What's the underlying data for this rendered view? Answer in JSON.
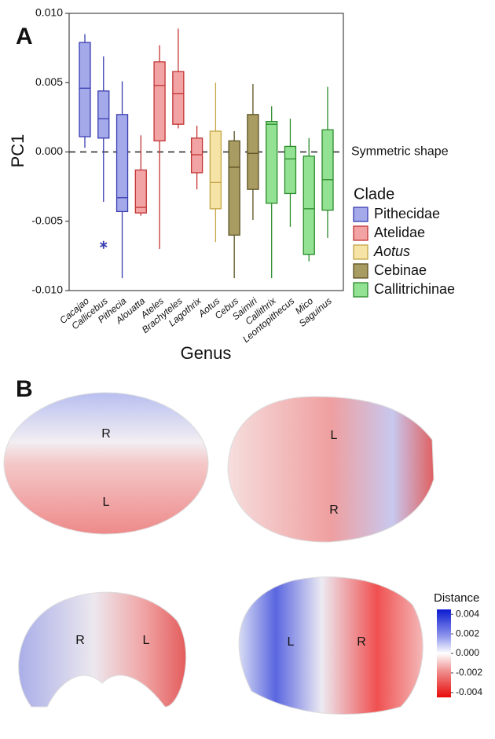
{
  "chart_data": {
    "type": "box",
    "panel": "A",
    "ylabel": "PC1",
    "xlabel": "Genus",
    "ylim": [
      -0.01,
      0.01
    ],
    "yticks": [
      {
        "value": -0.01,
        "label": "-0.010"
      },
      {
        "value": -0.005,
        "label": "-0.005"
      },
      {
        "value": 0,
        "label": "0.000"
      },
      {
        "value": 0.005,
        "label": "0.005"
      },
      {
        "value": 0.01,
        "label": "0.010"
      }
    ],
    "reference_line": {
      "value": 0,
      "label": "Symmetric shape"
    },
    "legend_title": "Clade",
    "legend": "right",
    "series": [
      {
        "name": "Pithecidae",
        "color": "#a4a9ea",
        "edge": "#3a3eb0",
        "categories": [
          "Cacajao",
          "Callicebus",
          "Pithecia"
        ],
        "boxes": [
          {
            "min": 0.0003,
            "q1": 0.0011,
            "median": 0.0046,
            "q3": 0.0079,
            "max": 0.0085
          },
          {
            "min": -0.0036,
            "q1": 0.001,
            "median": 0.0024,
            "q3": 0.0044,
            "max": 0.0069,
            "outliers": [
              -0.0067
            ]
          },
          {
            "min": -0.0091,
            "q1": -0.0043,
            "median": -0.0033,
            "q3": 0.0027,
            "max": 0.0051
          }
        ]
      },
      {
        "name": "Atelidae",
        "color": "#f2a3a3",
        "edge": "#c23434",
        "categories": [
          "Alouatta",
          "Ateles",
          "Brachyteles",
          "Lagothrix"
        ],
        "boxes": [
          {
            "min": -0.0046,
            "q1": -0.0044,
            "median": -0.004,
            "q3": -0.0013,
            "max": 0.0012
          },
          {
            "min": -0.007,
            "q1": 0.0008,
            "median": 0.0048,
            "q3": 0.0065,
            "max": 0.0077
          },
          {
            "min": 0.0017,
            "q1": 0.002,
            "median": 0.0042,
            "q3": 0.0058,
            "max": 0.0089
          },
          {
            "min": -0.0027,
            "q1": -0.0015,
            "median": -0.0002,
            "q3": 0.001,
            "max": 0.0019
          }
        ]
      },
      {
        "name": "Aotus",
        "italic": true,
        "color": "#f6e3a6",
        "edge": "#c4a548",
        "categories": [
          "Aotus"
        ],
        "boxes": [
          {
            "min": -0.0065,
            "q1": -0.0041,
            "median": -0.0022,
            "q3": 0.0015,
            "max": 0.005
          }
        ]
      },
      {
        "name": "Cebinae",
        "color": "#a99c62",
        "edge": "#5a5022",
        "categories": [
          "Cebus",
          "Saimiri"
        ],
        "boxes": [
          {
            "min": -0.0091,
            "q1": -0.006,
            "median": -0.0011,
            "q3": 0.0008,
            "max": 0.0015
          },
          {
            "min": -0.0049,
            "q1": -0.0027,
            "median": -0.0001,
            "q3": 0.0027,
            "max": 0.0049
          }
        ]
      },
      {
        "name": "Callitrichinae",
        "color": "#93e293",
        "edge": "#2b8a2b",
        "categories": [
          "Callithrix",
          "Leontopithecus",
          "Mico",
          "Saguinus"
        ],
        "boxes": [
          {
            "min": -0.0091,
            "q1": -0.0037,
            "median": 0.002,
            "q3": 0.0022,
            "max": 0.0033
          },
          {
            "min": -0.0054,
            "q1": -0.003,
            "median": -0.0005,
            "q3": 0.0004,
            "max": 0.0024
          },
          {
            "min": -0.0079,
            "q1": -0.0074,
            "median": -0.0041,
            "q3": -0.0003,
            "max": 0.001
          },
          {
            "min": -0.0062,
            "q1": -0.0042,
            "median": -0.002,
            "q3": 0.0016,
            "max": 0.0047
          }
        ]
      }
    ]
  },
  "panel_b": {
    "label": "B",
    "views": [
      [
        "R",
        "L"
      ],
      [
        "L",
        "R"
      ],
      [
        "R",
        "L"
      ],
      [
        "L",
        "R"
      ]
    ],
    "colorbar": {
      "title": "Distance",
      "lim": [
        -0.0045,
        0.0045
      ],
      "ticks": [
        0.004,
        0.002,
        {
          "value": 0,
          "label": "0.000"
        },
        -0.002,
        -0.004
      ]
    }
  }
}
